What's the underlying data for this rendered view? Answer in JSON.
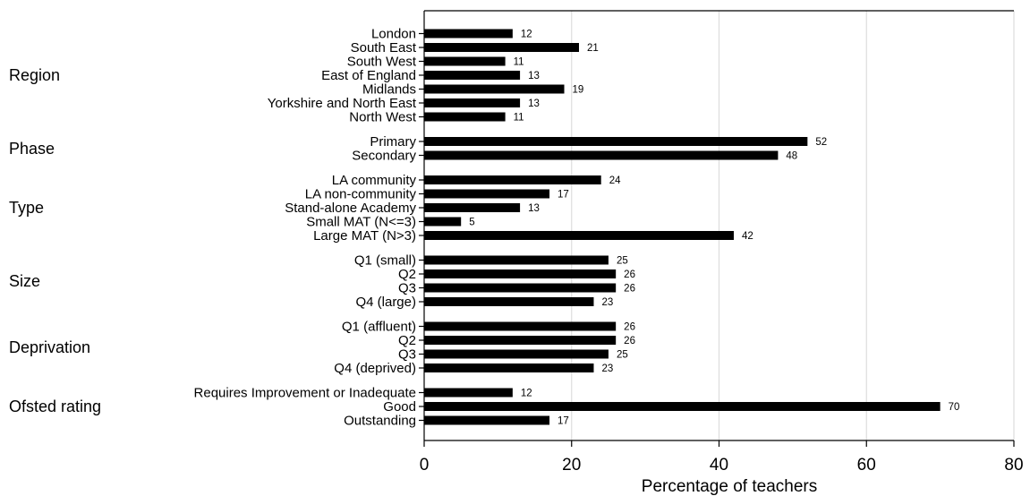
{
  "chart_data": {
    "type": "bar",
    "orientation": "horizontal",
    "xlabel": "Percentage of teachers",
    "xlim": [
      0,
      80
    ],
    "xticks": [
      0,
      20,
      40,
      60,
      80
    ],
    "grid": "vertical",
    "bar_color": "#000000",
    "groups": [
      {
        "name": "Region",
        "categories": [
          "London",
          "South East",
          "South West",
          "East of England",
          "Midlands",
          "Yorkshire and North East",
          "North West"
        ],
        "values": [
          12,
          21,
          11,
          13,
          19,
          13,
          11
        ]
      },
      {
        "name": "Phase",
        "categories": [
          "Primary",
          "Secondary"
        ],
        "values": [
          52,
          48
        ]
      },
      {
        "name": "Type",
        "categories": [
          "LA community",
          "LA non-community",
          "Stand-alone Academy",
          "Small MAT (N<=3)",
          "Large MAT (N>3)"
        ],
        "values": [
          24,
          17,
          13,
          5,
          42
        ]
      },
      {
        "name": "Size",
        "categories": [
          "Q1 (small)",
          "Q2",
          "Q3",
          "Q4 (large)"
        ],
        "values": [
          25,
          26,
          26,
          23
        ]
      },
      {
        "name": "Deprivation",
        "categories": [
          "Q1 (affluent)",
          "Q2",
          "Q3",
          "Q4 (deprived)"
        ],
        "values": [
          26,
          26,
          25,
          23
        ]
      },
      {
        "name": "Ofsted rating",
        "categories": [
          "Requires Improvement or Inadequate",
          "Good",
          "Outstanding"
        ],
        "values": [
          12,
          70,
          17
        ]
      }
    ]
  }
}
